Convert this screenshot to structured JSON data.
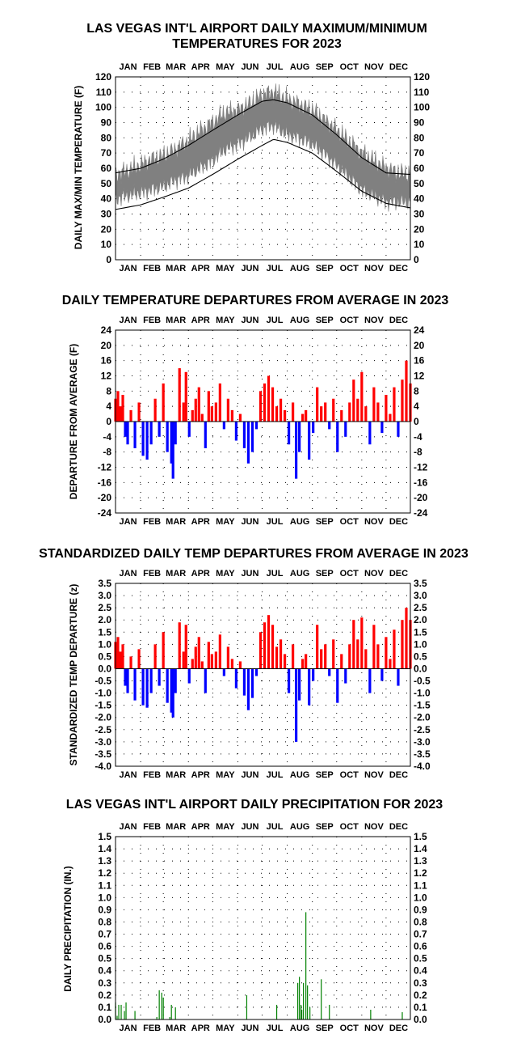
{
  "months": [
    "JAN",
    "FEB",
    "MAR",
    "APR",
    "MAY",
    "JUN",
    "JUL",
    "AUG",
    "SEP",
    "OCT",
    "NOV",
    "DEC"
  ],
  "chart_data": [
    {
      "id": "maxmin",
      "type": "area",
      "title_lines": [
        "LAS VEGAS INT'L AIRPORT DAILY MAXIMUM/MINIMUM",
        "TEMPERATURES FOR 2023"
      ],
      "ylabel": "DAILY MAX/MIN TEMPERATURE (F)",
      "ylim": [
        0,
        120
      ],
      "yticks": [
        "0",
        "10",
        "20",
        "30",
        "40",
        "50",
        "60",
        "70",
        "80",
        "90",
        "100",
        "110",
        "120"
      ],
      "grid": true,
      "colors": {
        "band": "#808080",
        "normal": "#000000"
      },
      "series": [
        {
          "name": "",
          "kind": "max_anchors",
          "x_day": [
            1,
            15,
            32,
            46,
            60,
            74,
            91,
            105,
            121,
            135,
            152,
            166,
            182,
            196,
            213,
            227,
            244,
            258,
            274,
            288,
            305,
            319,
            335,
            349,
            365
          ],
          "values": [
            56,
            58,
            62,
            66,
            68,
            72,
            78,
            84,
            90,
            96,
            98,
            102,
            108,
            110,
            105,
            102,
            98,
            92,
            85,
            78,
            70,
            65,
            60,
            57,
            56
          ]
        },
        {
          "name": "",
          "kind": "min_anchors",
          "x_day": [
            1,
            15,
            32,
            46,
            60,
            74,
            91,
            105,
            121,
            135,
            152,
            166,
            182,
            196,
            213,
            227,
            244,
            258,
            274,
            288,
            305,
            319,
            335,
            349,
            365
          ],
          "values": [
            40,
            42,
            44,
            46,
            48,
            52,
            55,
            60,
            65,
            72,
            76,
            80,
            86,
            88,
            82,
            80,
            76,
            70,
            62,
            55,
            46,
            42,
            38,
            38,
            38
          ]
        },
        {
          "name": "",
          "kind": "normal_max",
          "x_day": [
            1,
            32,
            60,
            91,
            121,
            152,
            182,
            196,
            213,
            244,
            274,
            305,
            335,
            365
          ],
          "values": [
            57,
            60,
            66,
            75,
            85,
            95,
            104,
            105,
            103,
            95,
            82,
            67,
            57,
            56
          ]
        },
        {
          "name": "",
          "kind": "normal_min",
          "x_day": [
            1,
            32,
            60,
            91,
            121,
            152,
            182,
            196,
            213,
            244,
            274,
            305,
            335,
            365
          ],
          "values": [
            33,
            36,
            41,
            47,
            56,
            66,
            75,
            79,
            77,
            70,
            58,
            45,
            37,
            34
          ]
        }
      ]
    },
    {
      "id": "departures",
      "type": "bar",
      "title_lines": [
        "DAILY TEMPERATURE DEPARTURES FROM AVERAGE IN 2023"
      ],
      "ylabel": "DEPARTURE FROM AVERAGE (F)",
      "ylim": [
        -24,
        24
      ],
      "yticks": [
        "-24",
        "-20",
        "-16",
        "-12",
        "-8",
        "-4",
        "0",
        "4",
        "8",
        "12",
        "16",
        "20",
        "24"
      ],
      "grid": true,
      "colors": {
        "pos": "#ff0000",
        "neg": "#0000ff"
      },
      "x_day": [
        1,
        4,
        7,
        10,
        13,
        16,
        20,
        25,
        30,
        35,
        40,
        45,
        50,
        55,
        60,
        65,
        70,
        72,
        75,
        80,
        85,
        88,
        92,
        96,
        100,
        104,
        108,
        112,
        116,
        120,
        125,
        130,
        135,
        140,
        145,
        150,
        155,
        160,
        165,
        170,
        175,
        180,
        185,
        190,
        195,
        200,
        205,
        210,
        215,
        220,
        224,
        228,
        232,
        236,
        240,
        245,
        250,
        255,
        260,
        265,
        270,
        275,
        280,
        285,
        290,
        295,
        300,
        305,
        310,
        315,
        320,
        325,
        330,
        335,
        340,
        345,
        350,
        355,
        360,
        365
      ],
      "values": [
        6,
        8,
        4,
        7,
        -4,
        -6,
        3,
        -7,
        5,
        -9,
        -10,
        -6,
        6,
        -4,
        10,
        -8,
        -11,
        -15,
        -6,
        14,
        5,
        13,
        -4,
        3,
        6,
        9,
        2,
        -7,
        8,
        4,
        5,
        10,
        -2,
        6,
        3,
        -5,
        2,
        -7,
        -11,
        -8,
        -2,
        8,
        10,
        12,
        9,
        4,
        6,
        3,
        -6,
        5,
        -15,
        -8,
        2,
        3,
        -10,
        -3,
        9,
        4,
        5,
        -2,
        6,
        -8,
        3,
        -4,
        5,
        11,
        6,
        13,
        4,
        -6,
        9,
        5,
        -3,
        7,
        2,
        9,
        -4,
        11,
        16,
        10
      ]
    },
    {
      "id": "standardized",
      "type": "bar",
      "title_lines": [
        "STANDARDIZED DAILY TEMP DEPARTURES FROM AVERAGE IN 2023"
      ],
      "ylabel": "STANDARDIZED TEMP DEPARTURE (z)",
      "ylim": [
        -4.0,
        3.5
      ],
      "yticks": [
        "-4.0",
        "-3.5",
        "-3.0",
        "-2.5",
        "-2.0",
        "-1.5",
        "-1.0",
        "-0.5",
        "0.0",
        "0.5",
        "1.0",
        "1.5",
        "2.0",
        "2.5",
        "3.0",
        "3.5"
      ],
      "grid": true,
      "colors": {
        "pos": "#ff0000",
        "neg": "#0000ff"
      },
      "x_day": [
        1,
        4,
        7,
        10,
        13,
        16,
        20,
        25,
        30,
        35,
        40,
        45,
        50,
        55,
        60,
        65,
        70,
        72,
        75,
        80,
        85,
        88,
        92,
        96,
        100,
        104,
        108,
        112,
        116,
        120,
        125,
        130,
        135,
        140,
        145,
        150,
        155,
        160,
        165,
        170,
        175,
        180,
        185,
        190,
        195,
        200,
        205,
        210,
        215,
        220,
        224,
        228,
        232,
        236,
        240,
        245,
        250,
        255,
        260,
        265,
        270,
        275,
        280,
        285,
        290,
        295,
        300,
        305,
        310,
        315,
        320,
        325,
        330,
        335,
        340,
        345,
        350,
        355,
        360,
        365
      ],
      "values": [
        1.1,
        1.3,
        0.7,
        1.0,
        -0.7,
        -1.0,
        0.5,
        -1.3,
        0.8,
        -1.5,
        -1.6,
        -1.0,
        1.0,
        -0.7,
        1.5,
        -1.4,
        -1.8,
        -2.0,
        -1.0,
        1.9,
        0.7,
        1.8,
        -0.6,
        0.4,
        0.9,
        1.3,
        0.3,
        -1.0,
        1.1,
        0.6,
        0.7,
        1.4,
        -0.3,
        0.9,
        0.4,
        -0.8,
        0.3,
        -1.1,
        -1.7,
        -1.2,
        -0.3,
        1.5,
        1.9,
        2.2,
        1.8,
        0.9,
        1.2,
        0.6,
        -1.0,
        1.0,
        -3.0,
        -1.3,
        0.4,
        0.6,
        -1.5,
        -0.5,
        1.8,
        0.8,
        1.0,
        -0.3,
        1.2,
        -1.4,
        0.6,
        -0.6,
        1.0,
        2.0,
        1.2,
        2.1,
        0.8,
        -1.0,
        1.8,
        1.0,
        -0.5,
        1.3,
        0.4,
        1.6,
        -0.7,
        2.0,
        2.5,
        2.0
      ]
    },
    {
      "id": "precip",
      "type": "bar",
      "title_lines": [
        "LAS VEGAS INT'L AIRPORT DAILY PRECIPITATION FOR 2023"
      ],
      "ylabel": "DAILY PRECIPITATION (IN.)",
      "ylim": [
        0,
        1.5
      ],
      "yticks": [
        "0.0",
        "0.1",
        "0.2",
        "0.3",
        "0.4",
        "0.5",
        "0.6",
        "0.7",
        "0.8",
        "0.9",
        "1.0",
        "1.1",
        "1.2",
        "1.3",
        "1.4",
        "1.5"
      ],
      "grid": true,
      "colors": {
        "bar": "#008000"
      },
      "x_day": [
        1,
        3,
        5,
        8,
        12,
        14,
        25,
        52,
        55,
        58,
        60,
        68,
        70,
        75,
        163,
        200,
        226,
        228,
        230,
        231,
        233,
        236,
        238,
        241,
        255,
        265,
        316,
        355
      ],
      "values": [
        0.14,
        0.03,
        0.12,
        0.12,
        0.07,
        0.14,
        0.07,
        0.02,
        0.24,
        0.22,
        0.18,
        0.02,
        0.12,
        0.1,
        0.2,
        0.12,
        0.3,
        0.35,
        0.12,
        0.08,
        0.3,
        0.88,
        0.28,
        0.1,
        0.33,
        0.12,
        0.08,
        0.06
      ]
    }
  ]
}
